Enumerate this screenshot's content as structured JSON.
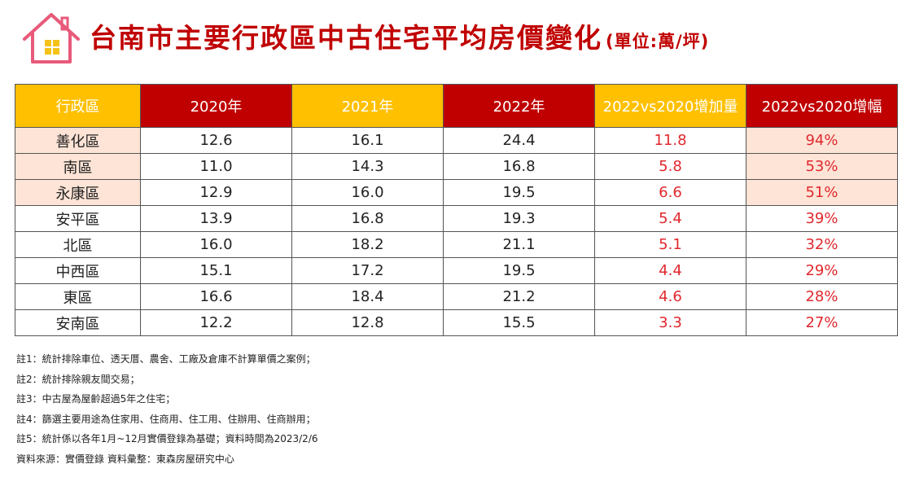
{
  "header": {
    "title": "台南市主要行政區中古住宅平均房價變化",
    "unit": "(單位:萬/坪)"
  },
  "table": {
    "headers": [
      "行政區",
      "2020年",
      "2021年",
      "2022年",
      "2022vs2020增加量",
      "2022vs2020增幅"
    ],
    "rows": [
      {
        "district": "善化區",
        "y2020": "12.6",
        "y2021": "16.1",
        "y2022": "24.4",
        "increase": "11.8",
        "pct": "94%"
      },
      {
        "district": "南區",
        "y2020": "11.0",
        "y2021": "14.3",
        "y2022": "16.8",
        "increase": "5.8",
        "pct": "53%"
      },
      {
        "district": "永康區",
        "y2020": "12.9",
        "y2021": "16.0",
        "y2022": "19.5",
        "increase": "6.6",
        "pct": "51%"
      },
      {
        "district": "安平區",
        "y2020": "13.9",
        "y2021": "16.8",
        "y2022": "19.3",
        "increase": "5.4",
        "pct": "39%"
      },
      {
        "district": "北區",
        "y2020": "16.0",
        "y2021": "18.2",
        "y2022": "21.1",
        "increase": "5.1",
        "pct": "32%"
      },
      {
        "district": "中西區",
        "y2020": "15.1",
        "y2021": "17.2",
        "y2022": "19.5",
        "increase": "4.4",
        "pct": "29%"
      },
      {
        "district": "東區",
        "y2020": "16.6",
        "y2021": "18.4",
        "y2022": "21.2",
        "increase": "4.6",
        "pct": "28%"
      },
      {
        "district": "安南區",
        "y2020": "12.2",
        "y2021": "12.8",
        "y2022": "15.5",
        "increase": "3.3",
        "pct": "27%"
      }
    ]
  },
  "notes": [
    "註1：統計排除車位、透天厝、農舍、工廠及倉庫不計算單價之案例；",
    "註2：統計排除親友間交易；",
    "註3：中古屋為屋齡超過5年之住宅；",
    "註4：篩選主要用途為住家用、住商用、住工用、住辦用、住商辦用；",
    "註5：統計係以各年1月~12月實價登錄為基礎；資料時間為2023/2/6",
    "資料來源：實價登錄 資料彙整：東森房屋研究中心"
  ],
  "colors": {
    "title_red": "#c00000",
    "header_gold": "#ffc000",
    "header_red": "#c00000",
    "highlight_row": "#fde4d6",
    "value_red": "#e0282e",
    "logo_pink": "#e85a7a",
    "logo_yellow": "#f5c21a"
  },
  "icons": [
    "house-logo-icon"
  ]
}
